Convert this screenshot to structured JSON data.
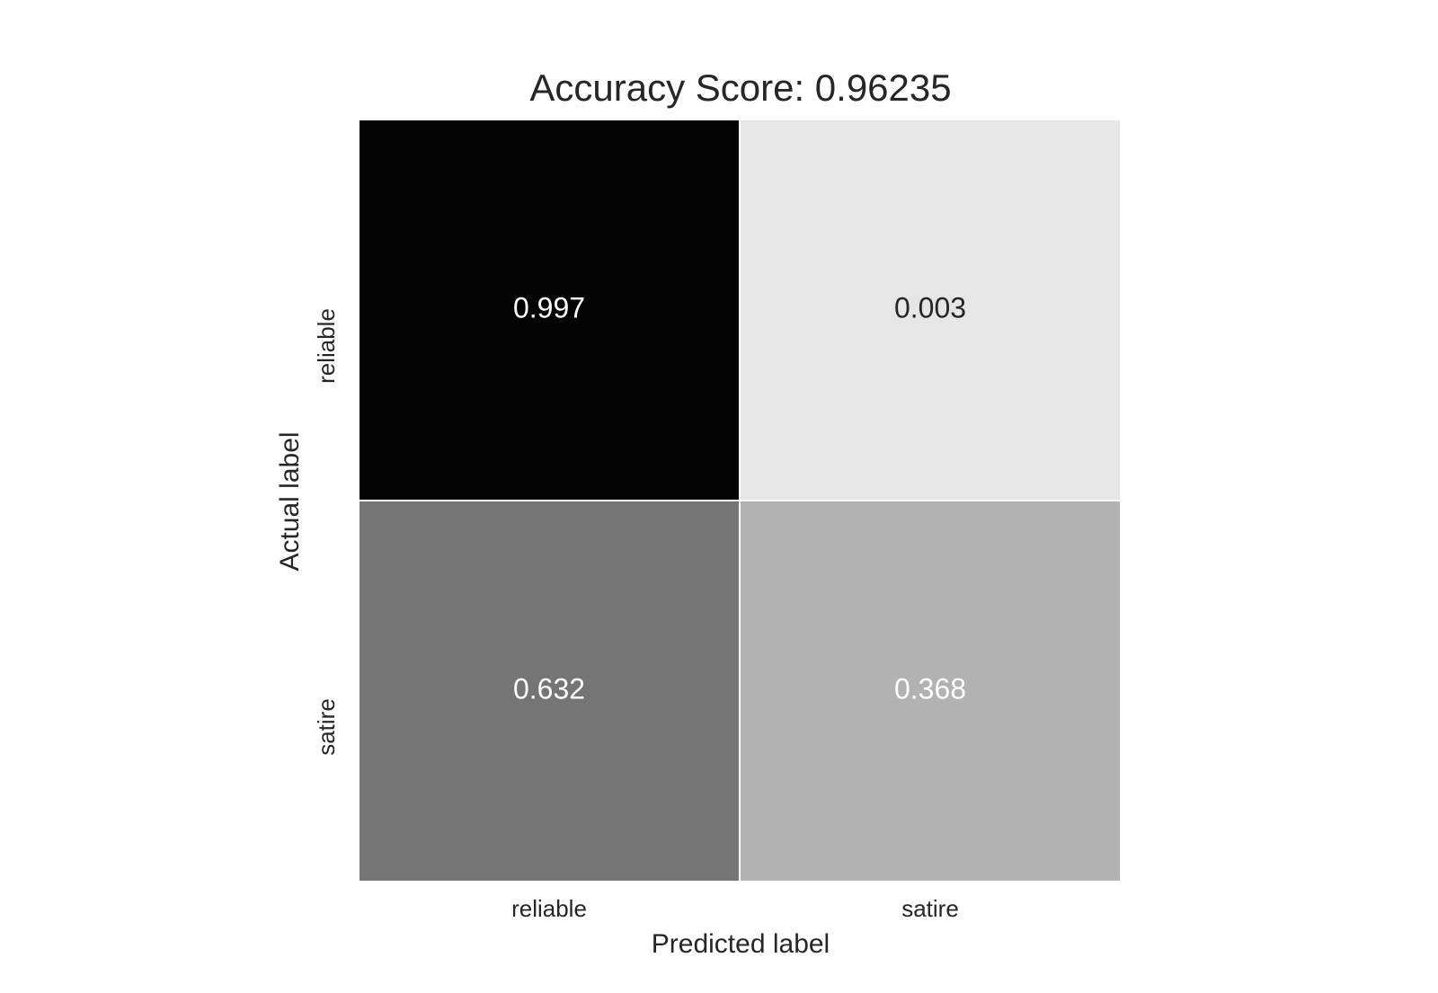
{
  "chart_data": {
    "type": "heatmap",
    "title": "Accuracy Score: 0.96235",
    "xlabel": "Predicted label",
    "ylabel": "Actual label",
    "x_categories": [
      "reliable",
      "satire"
    ],
    "y_categories": [
      "reliable",
      "satire"
    ],
    "values": [
      [
        0.997,
        0.003
      ],
      [
        0.632,
        0.368
      ]
    ],
    "value_labels": [
      [
        "0.997",
        "0.003"
      ],
      [
        "0.632",
        "0.368"
      ]
    ],
    "value_range": [
      0,
      1
    ],
    "colormap": "greys",
    "colors": {
      "low": "#ffffff",
      "high": "#000000",
      "cell_border": "#ffffff",
      "text_dark": "#262626",
      "text_light": "#ffffff"
    },
    "colorbar": false,
    "grid": false
  }
}
